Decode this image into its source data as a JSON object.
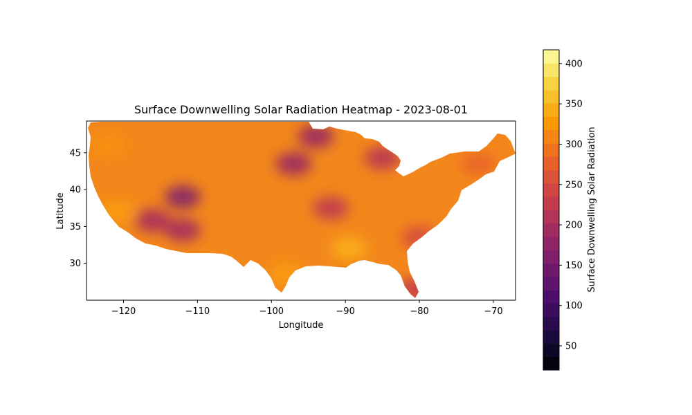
{
  "chart_data": {
    "type": "heatmap",
    "title": "Surface Downwelling Solar Radiation Heatmap - 2023-08-01",
    "xlabel": "Longitude",
    "ylabel": "Latitude",
    "xlim": [
      -125,
      -67
    ],
    "ylim": [
      25,
      49.3
    ],
    "xticks": [
      -120,
      -110,
      -100,
      -90,
      -80,
      -70
    ],
    "yticks": [
      30,
      35,
      40,
      45
    ],
    "colormap": "inferno",
    "colorbar": {
      "label": "Surface Downwelling Solar Radiation",
      "range": [
        20,
        417
      ],
      "ticks": [
        50,
        100,
        150,
        200,
        250,
        300,
        350,
        400
      ]
    },
    "data_region": "contiguous United States",
    "regions": [
      {
        "name": "Great Basin / Utah",
        "lon": -112,
        "lat": 39,
        "value": 165
      },
      {
        "name": "Central Arizona",
        "lon": -112,
        "lat": 34.5,
        "value": 195
      },
      {
        "name": "Southern Nevada",
        "lon": -116,
        "lat": 35.8,
        "value": 200
      },
      {
        "name": "South Dakota / Nebraska",
        "lon": -97,
        "lat": 43.5,
        "value": 185
      },
      {
        "name": "Northern Minnesota",
        "lon": -94,
        "lat": 47.2,
        "value": 185
      },
      {
        "name": "Missouri / Arkansas",
        "lon": -92,
        "lat": 37.5,
        "value": 225
      },
      {
        "name": "Michigan",
        "lon": -85,
        "lat": 44.3,
        "value": 215
      },
      {
        "name": "South Florida",
        "lon": -80.5,
        "lat": 26.5,
        "value": 230
      },
      {
        "name": "Southern Texas",
        "lon": -98,
        "lat": 28.5,
        "value": 330
      },
      {
        "name": "Lower Mississippi valley",
        "lon": -89.5,
        "lat": 32,
        "value": 345
      },
      {
        "name": "California coast",
        "lon": -121,
        "lat": 37,
        "value": 330
      },
      {
        "name": "Pacific Northwest",
        "lon": -122,
        "lat": 46,
        "value": 320
      },
      {
        "name": "Northeast",
        "lon": -72,
        "lat": 43.5,
        "value": 280
      },
      {
        "name": "Southeast coast",
        "lon": -80,
        "lat": 33.5,
        "value": 250
      }
    ]
  },
  "colors": {
    "base_fill": "#f3871c",
    "colormap_stops": [
      "#000004",
      "#1b0c41",
      "#4a0c6b",
      "#781c6d",
      "#a52c60",
      "#cf4446",
      "#ed6925",
      "#fb9b06",
      "#f7d13d",
      "#fcffa4"
    ]
  }
}
